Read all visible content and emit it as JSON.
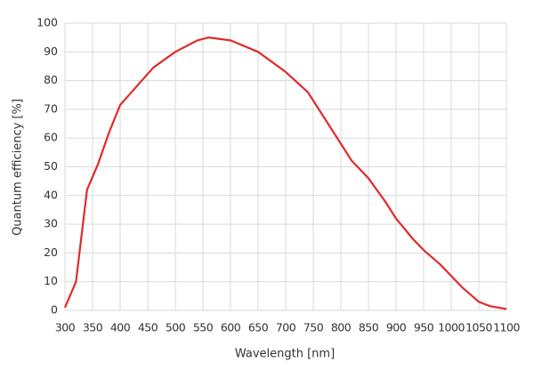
{
  "chart_data": {
    "type": "line",
    "xlabel": "Wavelength [nm]",
    "ylabel": "Quantum efficiency [%]",
    "x": [
      300,
      320,
      340,
      360,
      380,
      400,
      430,
      460,
      500,
      540,
      560,
      600,
      650,
      700,
      740,
      780,
      820,
      850,
      880,
      900,
      930,
      950,
      980,
      1000,
      1020,
      1050,
      1070,
      1100
    ],
    "values": [
      1,
      10,
      42,
      51,
      62,
      71.5,
      78,
      84.5,
      90,
      94,
      95,
      94,
      90,
      83,
      76,
      64,
      52,
      46,
      38,
      32,
      25,
      21,
      16,
      12,
      8,
      3,
      1.5,
      0.5
    ],
    "color": "#e02a2a",
    "xlim": [
      300,
      1100
    ],
    "xticks": [
      300,
      350,
      400,
      450,
      500,
      550,
      600,
      650,
      700,
      750,
      800,
      850,
      900,
      950,
      1000,
      1050,
      1100
    ],
    "ylim": [
      0,
      100
    ],
    "yticks": [
      0,
      10,
      20,
      30,
      40,
      50,
      60,
      70,
      80,
      90,
      100
    ],
    "grid": true
  }
}
